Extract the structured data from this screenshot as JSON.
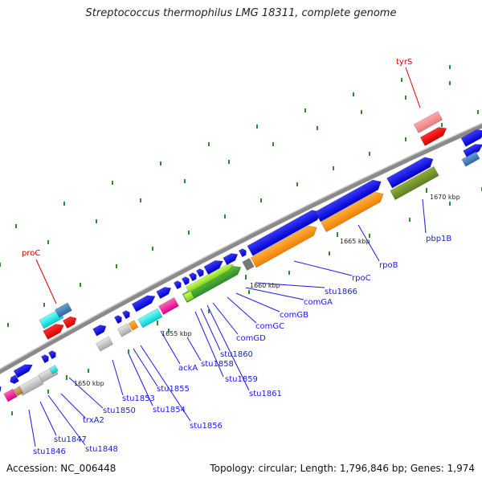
{
  "title": "Streptococcus thermophilus LMG 18311, complete genome",
  "accession": "Accession: NC_006448",
  "summary": "Topology: circular; Length: 1,796,846 bp; Genes: 1,974",
  "colors": {
    "backbone": "#8a8a8a",
    "forward_gene": "#1010e0",
    "label_line": "#1a1ae6",
    "highlight_label": "#dd0000",
    "tick_mark": "#2e8b2e"
  },
  "ticks": [
    {
      "label": "1650 kbp"
    },
    {
      "label": "1655 kbp"
    },
    {
      "label": "1660 kbp"
    },
    {
      "label": "1665 kbp"
    },
    {
      "label": "1670 kbp"
    }
  ],
  "gene_labels": [
    {
      "label": "stu1846",
      "highlight": false
    },
    {
      "label": "stu1847",
      "highlight": false
    },
    {
      "label": "stu1848",
      "highlight": false
    },
    {
      "label": "trxA2",
      "highlight": false
    },
    {
      "label": "stu1850",
      "highlight": false
    },
    {
      "label": "stu1853",
      "highlight": false
    },
    {
      "label": "stu1854",
      "highlight": false
    },
    {
      "label": "stu1855",
      "highlight": false
    },
    {
      "label": "stu1856",
      "highlight": false
    },
    {
      "label": "ackA",
      "highlight": false
    },
    {
      "label": "stu1858",
      "highlight": false
    },
    {
      "label": "stu1859",
      "highlight": false
    },
    {
      "label": "stu1860",
      "highlight": false
    },
    {
      "label": "stu1861",
      "highlight": false
    },
    {
      "label": "comGD",
      "highlight": false
    },
    {
      "label": "comGC",
      "highlight": false
    },
    {
      "label": "comGB",
      "highlight": false
    },
    {
      "label": "comGA",
      "highlight": false
    },
    {
      "label": "stu1866",
      "highlight": false
    },
    {
      "label": "rpoC",
      "highlight": false
    },
    {
      "label": "rpoB",
      "highlight": false
    },
    {
      "label": "pbp1B",
      "highlight": false
    },
    {
      "label": "proC",
      "highlight": true
    },
    {
      "label": "tyrS",
      "highlight": true
    }
  ]
}
